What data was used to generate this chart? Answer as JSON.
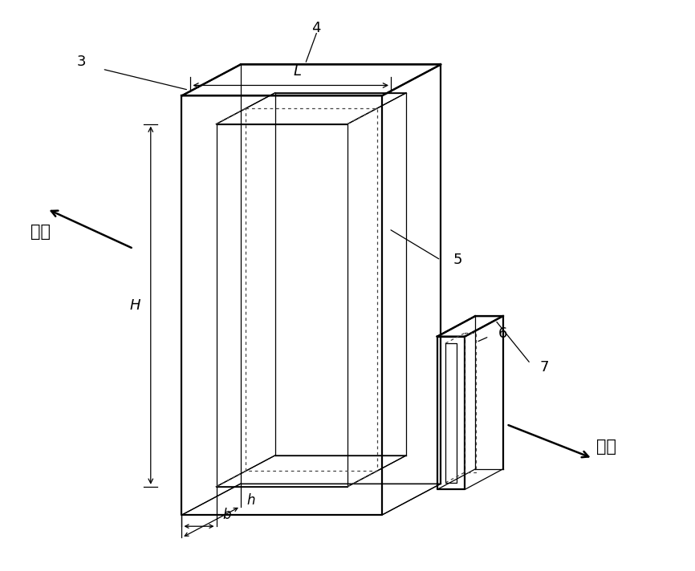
{
  "bg_color": "#ffffff",
  "fig_width": 8.66,
  "fig_height": 7.12,
  "dpi": 100,
  "lw_main": 1.6,
  "lw_thin": 0.9,
  "lw_dot": 0.9,
  "label_fs": 13,
  "dim_fs": 13,
  "tension_fs": 15,
  "ann_lw": 0.9
}
